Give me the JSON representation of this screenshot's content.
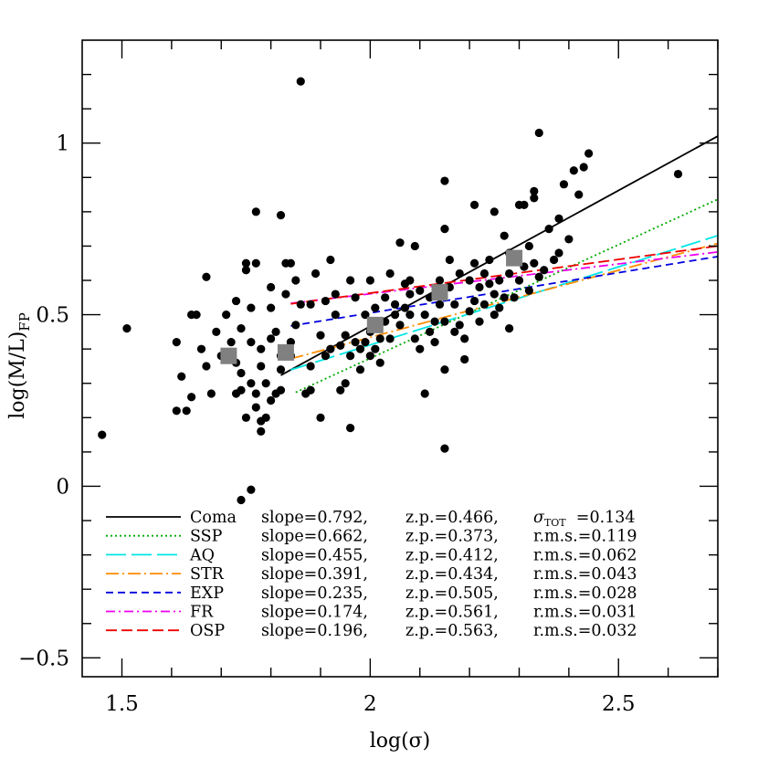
{
  "chart_data": {
    "type": "scatter",
    "xlabel": "log(σ)",
    "ylabel_main": "log(M/L)",
    "ylabel_sub": "FP",
    "xlim": [
      1.42,
      2.7
    ],
    "ylim": [
      -0.555,
      1.3
    ],
    "x_ticks": [
      1.5,
      2,
      2.5
    ],
    "x_tick_labels": [
      "1.5",
      "2",
      "2.5"
    ],
    "y_ticks": [
      -0.5,
      0,
      0.5,
      1
    ],
    "y_tick_labels": [
      "−0.5",
      "0",
      "0.5",
      "1"
    ],
    "grid": false,
    "legend_placement": "bottom-right",
    "points": [
      {
        "x": 1.46,
        "y": 0.15
      },
      {
        "x": 1.51,
        "y": 0.46
      },
      {
        "x": 1.61,
        "y": 0.22
      },
      {
        "x": 1.62,
        "y": 0.32
      },
      {
        "x": 1.61,
        "y": 0.42
      },
      {
        "x": 1.63,
        "y": 0.22
      },
      {
        "x": 1.64,
        "y": 0.26
      },
      {
        "x": 1.64,
        "y": 0.5
      },
      {
        "x": 1.65,
        "y": 0.5
      },
      {
        "x": 1.66,
        "y": 0.4
      },
      {
        "x": 1.67,
        "y": 0.35
      },
      {
        "x": 1.67,
        "y": 0.61
      },
      {
        "x": 1.68,
        "y": 0.27
      },
      {
        "x": 1.69,
        "y": 0.45
      },
      {
        "x": 1.7,
        "y": 0.38
      },
      {
        "x": 1.71,
        "y": 0.5
      },
      {
        "x": 1.72,
        "y": 0.42
      },
      {
        "x": 1.72,
        "y": 0.38
      },
      {
        "x": 1.73,
        "y": 0.36
      },
      {
        "x": 1.73,
        "y": 0.27
      },
      {
        "x": 1.73,
        "y": 0.54
      },
      {
        "x": 1.74,
        "y": 0.28
      },
      {
        "x": 1.74,
        "y": 0.33
      },
      {
        "x": 1.74,
        "y": 0.46
      },
      {
        "x": 1.75,
        "y": 0.63
      },
      {
        "x": 1.75,
        "y": 0.65
      },
      {
        "x": 1.75,
        "y": 0.2
      },
      {
        "x": 1.76,
        "y": 0.52
      },
      {
        "x": 1.76,
        "y": 0.42
      },
      {
        "x": 1.76,
        "y": 0.3
      },
      {
        "x": 1.77,
        "y": 0.23
      },
      {
        "x": 1.77,
        "y": 0.27
      },
      {
        "x": 1.77,
        "y": 0.8
      },
      {
        "x": 1.77,
        "y": 0.65
      },
      {
        "x": 1.78,
        "y": 0.4
      },
      {
        "x": 1.78,
        "y": 0.35
      },
      {
        "x": 1.78,
        "y": 0.19
      },
      {
        "x": 1.78,
        "y": 0.16
      },
      {
        "x": 1.79,
        "y": 0.2
      },
      {
        "x": 1.79,
        "y": 0.3
      },
      {
        "x": 1.8,
        "y": 0.52
      },
      {
        "x": 1.8,
        "y": 0.43
      },
      {
        "x": 1.8,
        "y": 0.58
      },
      {
        "x": 1.8,
        "y": 0.25
      },
      {
        "x": 1.81,
        "y": 0.27
      },
      {
        "x": 1.81,
        "y": 0.45
      },
      {
        "x": 1.82,
        "y": 0.38
      },
      {
        "x": 1.82,
        "y": 0.34
      },
      {
        "x": 1.82,
        "y": 0.28
      },
      {
        "x": 1.82,
        "y": 0.79
      },
      {
        "x": 1.83,
        "y": 0.56
      },
      {
        "x": 1.83,
        "y": 0.65
      },
      {
        "x": 1.84,
        "y": 0.42
      },
      {
        "x": 1.84,
        "y": 0.38
      },
      {
        "x": 1.84,
        "y": 0.65
      },
      {
        "x": 1.85,
        "y": 0.6
      },
      {
        "x": 1.85,
        "y": 0.47
      },
      {
        "x": 1.86,
        "y": 0.53
      },
      {
        "x": 1.86,
        "y": 1.18
      },
      {
        "x": 1.87,
        "y": 0.27
      },
      {
        "x": 1.88,
        "y": 0.35
      },
      {
        "x": 1.88,
        "y": 0.28
      },
      {
        "x": 1.88,
        "y": 0.53
      },
      {
        "x": 1.89,
        "y": 0.62
      },
      {
        "x": 1.9,
        "y": 0.44
      },
      {
        "x": 1.9,
        "y": 0.2
      },
      {
        "x": 1.91,
        "y": 0.54
      },
      {
        "x": 1.91,
        "y": 0.38
      },
      {
        "x": 1.92,
        "y": 0.4
      },
      {
        "x": 1.92,
        "y": 0.66
      },
      {
        "x": 1.93,
        "y": 0.56
      },
      {
        "x": 1.93,
        "y": 0.5
      },
      {
        "x": 1.94,
        "y": 0.41
      },
      {
        "x": 1.94,
        "y": 0.28
      },
      {
        "x": 1.95,
        "y": 0.44
      },
      {
        "x": 1.95,
        "y": 0.3
      },
      {
        "x": 1.96,
        "y": 0.38
      },
      {
        "x": 1.96,
        "y": 0.6
      },
      {
        "x": 1.96,
        "y": 0.17
      },
      {
        "x": 1.97,
        "y": 0.55
      },
      {
        "x": 1.97,
        "y": 0.42
      },
      {
        "x": 1.98,
        "y": 0.4
      },
      {
        "x": 1.98,
        "y": 0.34
      },
      {
        "x": 1.99,
        "y": 0.42
      },
      {
        "x": 1.99,
        "y": 0.5
      },
      {
        "x": 2.0,
        "y": 0.45
      },
      {
        "x": 2.0,
        "y": 0.38
      },
      {
        "x": 2.0,
        "y": 0.6
      },
      {
        "x": 2.01,
        "y": 0.52
      },
      {
        "x": 2.01,
        "y": 0.4
      },
      {
        "x": 2.02,
        "y": 0.43
      },
      {
        "x": 2.02,
        "y": 0.36
      },
      {
        "x": 2.03,
        "y": 0.55
      },
      {
        "x": 2.03,
        "y": 0.48
      },
      {
        "x": 2.04,
        "y": 0.62
      },
      {
        "x": 2.04,
        "y": 0.43
      },
      {
        "x": 2.05,
        "y": 0.5
      },
      {
        "x": 2.05,
        "y": 0.53
      },
      {
        "x": 2.06,
        "y": 0.71
      },
      {
        "x": 2.06,
        "y": 0.47
      },
      {
        "x": 2.07,
        "y": 0.59
      },
      {
        "x": 2.07,
        "y": 0.52
      },
      {
        "x": 2.08,
        "y": 0.5
      },
      {
        "x": 2.08,
        "y": 0.6
      },
      {
        "x": 2.09,
        "y": 0.43
      },
      {
        "x": 2.09,
        "y": 0.7
      },
      {
        "x": 2.1,
        "y": 0.57
      },
      {
        "x": 2.1,
        "y": 0.4
      },
      {
        "x": 2.11,
        "y": 0.27
      },
      {
        "x": 2.11,
        "y": 0.5
      },
      {
        "x": 2.12,
        "y": 0.55
      },
      {
        "x": 2.12,
        "y": 0.45
      },
      {
        "x": 2.13,
        "y": 0.48
      },
      {
        "x": 2.13,
        "y": 0.42
      },
      {
        "x": 2.14,
        "y": 0.6
      },
      {
        "x": 2.14,
        "y": 0.53
      },
      {
        "x": 2.15,
        "y": 0.48
      },
      {
        "x": 2.15,
        "y": 0.75
      },
      {
        "x": 2.15,
        "y": 0.89
      },
      {
        "x": 2.16,
        "y": 0.66
      },
      {
        "x": 2.16,
        "y": 0.58
      },
      {
        "x": 2.17,
        "y": 0.45
      },
      {
        "x": 2.17,
        "y": 0.53
      },
      {
        "x": 2.18,
        "y": 0.47
      },
      {
        "x": 2.18,
        "y": 0.62
      },
      {
        "x": 2.19,
        "y": 0.37
      },
      {
        "x": 2.19,
        "y": 0.43
      },
      {
        "x": 2.2,
        "y": 0.51
      },
      {
        "x": 2.2,
        "y": 0.6
      },
      {
        "x": 2.21,
        "y": 0.65
      },
      {
        "x": 2.21,
        "y": 0.54
      },
      {
        "x": 2.22,
        "y": 0.48
      },
      {
        "x": 2.22,
        "y": 0.58
      },
      {
        "x": 2.23,
        "y": 0.53
      },
      {
        "x": 2.23,
        "y": 0.62
      },
      {
        "x": 2.24,
        "y": 0.59
      },
      {
        "x": 2.24,
        "y": 0.66
      },
      {
        "x": 2.25,
        "y": 0.5
      },
      {
        "x": 2.25,
        "y": 0.56
      },
      {
        "x": 2.26,
        "y": 0.52
      },
      {
        "x": 2.26,
        "y": 0.6
      },
      {
        "x": 2.27,
        "y": 0.55
      },
      {
        "x": 2.27,
        "y": 0.73
      },
      {
        "x": 2.28,
        "y": 0.62
      },
      {
        "x": 2.28,
        "y": 0.46
      },
      {
        "x": 2.29,
        "y": 0.55
      },
      {
        "x": 2.3,
        "y": 0.6
      },
      {
        "x": 2.31,
        "y": 0.82
      },
      {
        "x": 2.31,
        "y": 0.64
      },
      {
        "x": 2.32,
        "y": 0.7
      },
      {
        "x": 2.32,
        "y": 0.57
      },
      {
        "x": 2.33,
        "y": 0.86
      },
      {
        "x": 2.33,
        "y": 0.65
      },
      {
        "x": 2.34,
        "y": 1.03
      },
      {
        "x": 2.34,
        "y": 0.61
      },
      {
        "x": 2.35,
        "y": 0.63
      },
      {
        "x": 2.36,
        "y": 0.75
      },
      {
        "x": 2.37,
        "y": 0.66
      },
      {
        "x": 2.38,
        "y": 0.68
      },
      {
        "x": 2.39,
        "y": 0.88
      },
      {
        "x": 2.4,
        "y": 0.72
      },
      {
        "x": 2.41,
        "y": 0.92
      },
      {
        "x": 2.42,
        "y": 0.85
      },
      {
        "x": 2.43,
        "y": 0.93
      },
      {
        "x": 2.44,
        "y": 0.97
      },
      {
        "x": 2.15,
        "y": 0.11
      },
      {
        "x": 2.15,
        "y": 0.34
      },
      {
        "x": 2.08,
        "y": 0.56
      },
      {
        "x": 2.3,
        "y": 0.82
      },
      {
        "x": 2.62,
        "y": 0.91
      },
      {
        "x": 2.25,
        "y": 0.8
      },
      {
        "x": 2.21,
        "y": 0.82
      },
      {
        "x": 2.28,
        "y": 0.68
      },
      {
        "x": 2.33,
        "y": 0.84
      },
      {
        "x": 2.38,
        "y": 0.78
      },
      {
        "x": 1.76,
        "y": -0.01
      },
      {
        "x": 1.74,
        "y": -0.04
      }
    ],
    "binned_means": [
      {
        "x": 1.715,
        "y": 0.38
      },
      {
        "x": 1.83,
        "y": 0.39
      },
      {
        "x": 2.01,
        "y": 0.47
      },
      {
        "x": 2.14,
        "y": 0.565
      },
      {
        "x": 2.29,
        "y": 0.665
      }
    ],
    "series": [
      {
        "name": "Coma",
        "slope": 0.792,
        "zp": 0.466,
        "stat_label": "σ",
        "stat_sub": "TOT",
        "stat_value": 0.134,
        "x_range": [
          1.82,
          2.7
        ],
        "color": "#000000",
        "dash": "none"
      },
      {
        "name": "SSP",
        "slope": 0.662,
        "zp": 0.373,
        "stat_label": "r.m.s.",
        "stat_value": 0.119,
        "x_range": [
          1.85,
          2.7
        ],
        "color": "#00aa00",
        "dash": "2 3"
      },
      {
        "name": "AQ",
        "slope": 0.455,
        "zp": 0.412,
        "stat_label": "r.m.s.",
        "stat_value": 0.062,
        "x_range": [
          1.84,
          2.7
        ],
        "color": "#00e5e5",
        "dash": "22 6"
      },
      {
        "name": "STR",
        "slope": 0.391,
        "zp": 0.434,
        "stat_label": "r.m.s.",
        "stat_value": 0.043,
        "x_range": [
          1.84,
          2.7
        ],
        "color": "#ff8c00",
        "dash": "14 4 2 4"
      },
      {
        "name": "EXP",
        "slope": 0.235,
        "zp": 0.505,
        "stat_label": "r.m.s.",
        "stat_value": 0.028,
        "x_range": [
          1.84,
          2.7
        ],
        "color": "#0000dd",
        "dash": "8 5"
      },
      {
        "name": "FR",
        "slope": 0.174,
        "zp": 0.561,
        "stat_label": "r.m.s.",
        "stat_value": 0.031,
        "x_range": [
          1.84,
          2.7
        ],
        "color": "#ee00ee",
        "dash": "10 4 2 4"
      },
      {
        "name": "OSP",
        "slope": 0.196,
        "zp": 0.563,
        "stat_label": "r.m.s.",
        "stat_value": 0.032,
        "x_range": [
          1.84,
          2.7
        ],
        "color": "#ee0000",
        "dash": "12 5"
      }
    ]
  }
}
